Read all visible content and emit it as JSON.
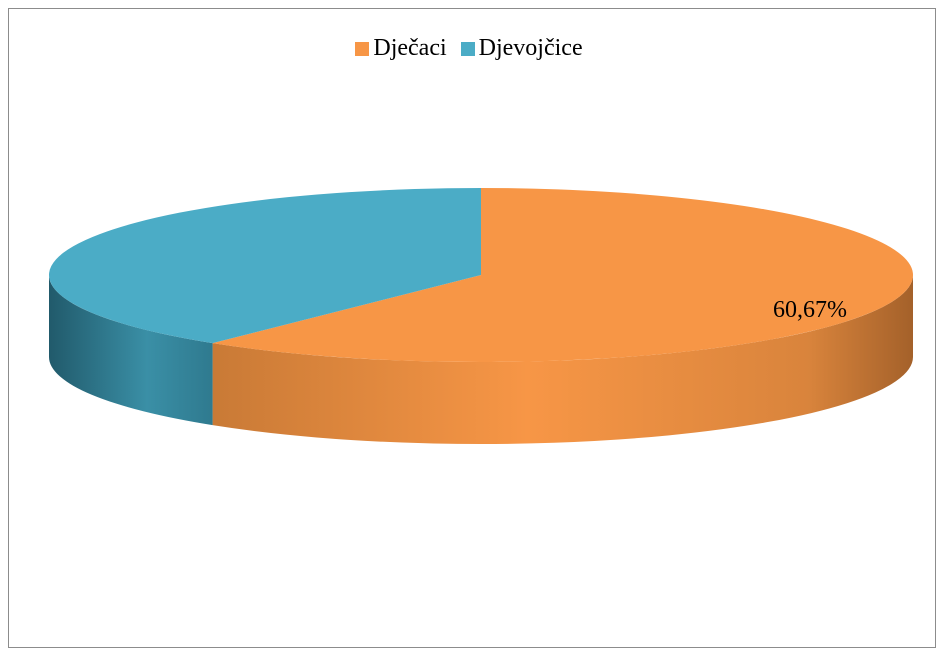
{
  "chart_data": {
    "type": "pie",
    "style": "3d",
    "categories": [
      "Dječaci",
      "Djevojčice"
    ],
    "values": [
      60.67,
      39.33
    ],
    "colors": [
      "#f79646",
      "#4bacc6"
    ],
    "data_labels": [
      "60,67%"
    ],
    "title": "",
    "legend_position": "top"
  },
  "legend": {
    "items": [
      {
        "label": "Dječaci",
        "color": "#f79646"
      },
      {
        "label": "Djevojčice",
        "color": "#4bacc6"
      }
    ]
  }
}
